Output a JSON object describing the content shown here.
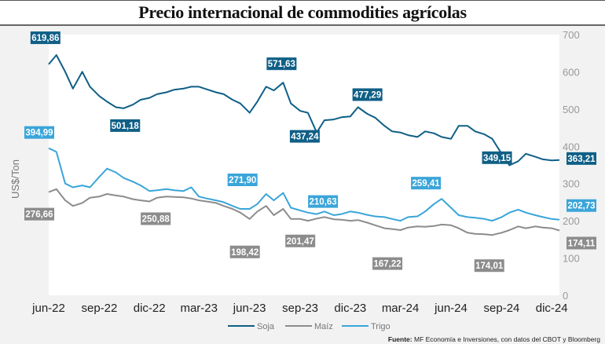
{
  "chart_data": {
    "type": "line",
    "title": "Precio internacional de commodities agrícolas",
    "ylabel": "US$/Ton",
    "ylim": [
      0,
      700
    ],
    "yticks": [
      "0",
      "100",
      "200",
      "300",
      "400",
      "500",
      "600",
      "700"
    ],
    "xticks": [
      [
        "2022-06-01",
        "jun-22"
      ],
      [
        "2022-09-01",
        "sep-22"
      ],
      [
        "2022-12-01",
        "dic-22"
      ],
      [
        "2023-03-01",
        "mar-23"
      ],
      [
        "2023-06-01",
        "jun-23"
      ],
      [
        "2023-09-01",
        "sep-23"
      ],
      [
        "2023-12-01",
        "dic-23"
      ],
      [
        "2024-03-01",
        "mar-24"
      ],
      [
        "2024-06-01",
        "jun-24"
      ],
      [
        "2024-09-01",
        "sep-24"
      ],
      [
        "2024-12-01",
        "dic-24"
      ]
    ],
    "legend_position": "bottom",
    "grid": false,
    "dates": [
      "2022-06-01",
      "2022-06-15",
      "2022-07-01",
      "2022-07-15",
      "2022-08-01",
      "2022-08-15",
      "2022-09-01",
      "2022-09-15",
      "2022-10-01",
      "2022-10-15",
      "2022-11-01",
      "2022-11-15",
      "2022-12-01",
      "2022-12-15",
      "2023-01-01",
      "2023-01-15",
      "2023-02-01",
      "2023-02-15",
      "2023-03-01",
      "2023-03-15",
      "2023-04-01",
      "2023-04-15",
      "2023-05-01",
      "2023-05-15",
      "2023-06-01",
      "2023-06-15",
      "2023-07-01",
      "2023-07-15",
      "2023-08-01",
      "2023-08-15",
      "2023-09-01",
      "2023-09-15",
      "2023-10-01",
      "2023-10-15",
      "2023-11-01",
      "2023-11-15",
      "2023-12-01",
      "2023-12-15",
      "2024-01-01",
      "2024-01-15",
      "2024-02-01",
      "2024-02-15",
      "2024-03-01",
      "2024-03-15",
      "2024-04-01",
      "2024-04-15",
      "2024-05-01",
      "2024-05-15",
      "2024-06-01",
      "2024-06-15",
      "2024-07-01",
      "2024-07-15",
      "2024-08-01",
      "2024-08-15",
      "2024-09-01",
      "2024-09-15",
      "2024-10-01",
      "2024-10-15",
      "2024-11-01",
      "2024-11-15",
      "2024-12-01",
      "2024-12-15"
    ],
    "series": [
      {
        "name": "Soja",
        "color": "#0f5f86",
        "values": [
          620,
          645,
          600,
          555,
          600,
          560,
          535,
          520,
          505,
          502,
          512,
          525,
          530,
          540,
          545,
          552,
          555,
          560,
          560,
          553,
          545,
          540,
          525,
          515,
          490,
          520,
          560,
          550,
          571,
          515,
          495,
          490,
          437,
          470,
          472,
          478,
          480,
          505,
          487,
          477,
          455,
          440,
          437,
          430,
          425,
          440,
          435,
          425,
          420,
          455,
          455,
          440,
          432,
          420,
          380,
          349,
          360,
          380,
          372,
          365,
          362,
          363
        ]
      },
      {
        "name": "Maíz",
        "color": "#8c8c8c",
        "values": [
          277,
          285,
          255,
          240,
          248,
          262,
          265,
          272,
          268,
          265,
          258,
          255,
          252,
          262,
          265,
          264,
          263,
          260,
          255,
          252,
          248,
          240,
          232,
          222,
          205,
          225,
          240,
          215,
          232,
          205,
          205,
          200,
          206,
          210,
          204,
          203,
          200,
          202,
          195,
          188,
          180,
          178,
          175,
          182,
          185,
          184,
          186,
          190,
          188,
          180,
          168,
          165,
          164,
          162,
          168,
          175,
          185,
          180,
          185,
          182,
          180,
          174
        ]
      },
      {
        "name": "Trigo",
        "color": "#3aa5d9",
        "values": [
          395,
          385,
          300,
          290,
          295,
          290,
          318,
          340,
          330,
          315,
          305,
          295,
          280,
          282,
          285,
          282,
          280,
          290,
          265,
          260,
          255,
          250,
          240,
          232,
          232,
          245,
          272,
          255,
          275,
          235,
          228,
          222,
          218,
          225,
          215,
          218,
          225,
          222,
          216,
          212,
          210,
          205,
          200,
          210,
          212,
          225,
          245,
          259,
          235,
          215,
          210,
          208,
          205,
          200,
          210,
          222,
          230,
          222,
          215,
          210,
          205,
          203
        ]
      }
    ],
    "annotations": [
      {
        "series": 0,
        "date": "2022-06-15",
        "label": "619,86"
      },
      {
        "series": 0,
        "date": "2022-10-15",
        "label": "501,18"
      },
      {
        "series": 0,
        "date": "2023-08-01",
        "label": "571,63"
      },
      {
        "series": 0,
        "date": "2023-09-15",
        "label": "437,24"
      },
      {
        "series": 0,
        "date": "2023-12-15",
        "label": "477,29"
      },
      {
        "series": 0,
        "date": "2024-08-15",
        "label": "349,15"
      },
      {
        "series": 0,
        "date": "2024-12-15",
        "label": "363,21"
      },
      {
        "series": 1,
        "date": "2022-06-01",
        "label": "276,66"
      },
      {
        "series": 1,
        "date": "2022-12-01",
        "label": "250,88"
      },
      {
        "series": 1,
        "date": "2023-06-01",
        "label": "198,42"
      },
      {
        "series": 1,
        "date": "2023-08-15",
        "label": "201,47"
      },
      {
        "series": 1,
        "date": "2024-02-15",
        "label": "167,22"
      },
      {
        "series": 1,
        "date": "2024-08-01",
        "label": "174,01"
      },
      {
        "series": 1,
        "date": "2024-12-15",
        "label": "174,11"
      },
      {
        "series": 2,
        "date": "2022-06-01",
        "label": "394,99"
      },
      {
        "series": 2,
        "date": "2023-07-01",
        "label": "271,90"
      },
      {
        "series": 2,
        "date": "2023-10-01",
        "label": "210,63"
      },
      {
        "series": 2,
        "date": "2024-05-15",
        "label": "259,41"
      },
      {
        "series": 2,
        "date": "2024-12-15",
        "label": "202,73"
      }
    ]
  },
  "source": {
    "prefix": "Fuente:",
    "text": " MF Economía e Inversiones, con datos del CBOT y Bloomberg"
  }
}
